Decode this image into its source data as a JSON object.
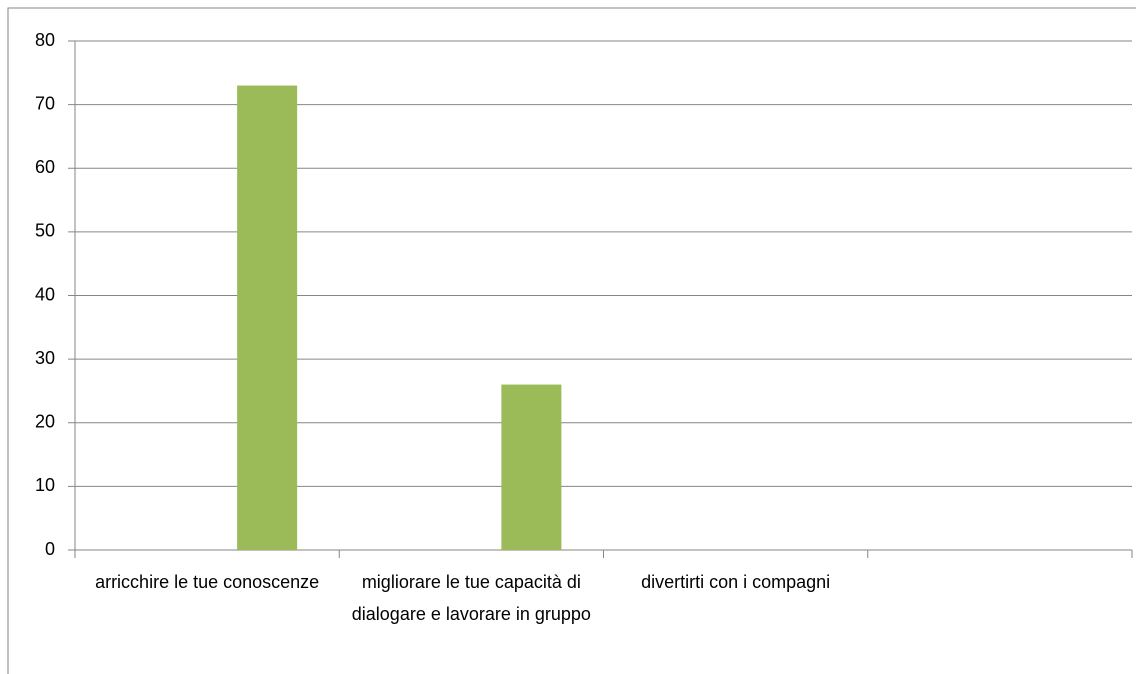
{
  "chart_data": {
    "type": "bar",
    "categories": [
      "arricchire le tue conoscenze",
      "migliorare le tue capacità di dialogare e lavorare in gruppo",
      "divertirti con i compagni",
      null
    ],
    "values": [
      73,
      26,
      0,
      null
    ],
    "color": "#9bbb59",
    "ylim": [
      0,
      80
    ],
    "yticks": [
      0,
      10,
      20,
      30,
      40,
      50,
      60,
      70,
      80
    ],
    "grid": true
  }
}
